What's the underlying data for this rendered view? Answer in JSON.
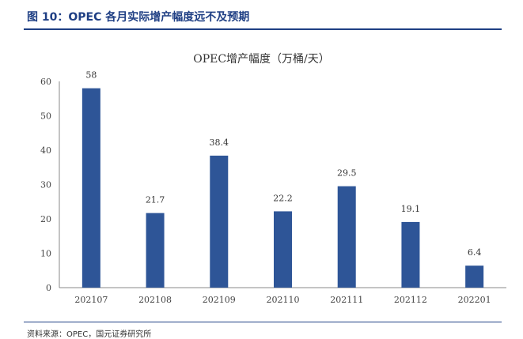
{
  "figure": {
    "title": "图 10：OPEC 各月实际增产幅度远不及预期",
    "source": "资料来源：OPEC，国元证券研究所"
  },
  "colors": {
    "bar": "#2e5597",
    "accent": "#1f3f84"
  },
  "chart_data": {
    "type": "bar",
    "title": "OPEC增产幅度（万桶/天）",
    "xlabel": "",
    "ylabel": "",
    "categories": [
      "202107",
      "202108",
      "202109",
      "202110",
      "202111",
      "202112",
      "202201"
    ],
    "values": [
      58,
      21.7,
      38.4,
      22.2,
      29.5,
      19.1,
      6.4
    ],
    "value_labels": [
      "58",
      "21.7",
      "38.4",
      "22.2",
      "29.5",
      "19.1",
      "6.4"
    ],
    "ylim": [
      0,
      60
    ],
    "yticks": [
      0,
      10,
      20,
      30,
      40,
      50,
      60
    ],
    "grid": false,
    "legend": "none"
  }
}
